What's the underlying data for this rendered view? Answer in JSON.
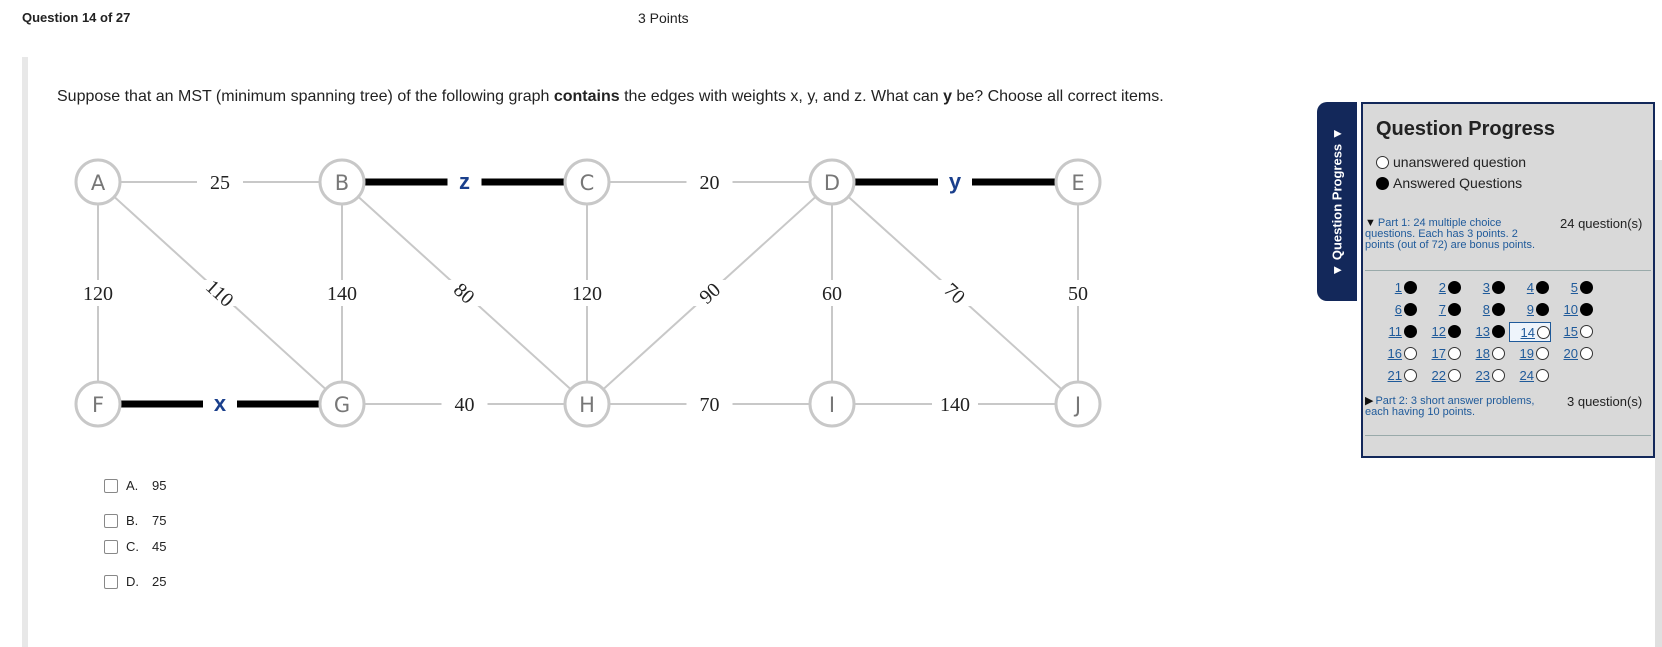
{
  "header": {
    "question_number": "Question 14 of 27",
    "points": "3 Points"
  },
  "question": {
    "text_part1": "Suppose that an MST (minimum spanning tree) of the following graph ",
    "text_bold1": "contains",
    "text_part2": " the edges with weights x, y, and z. What can ",
    "text_bold2": "y",
    "text_part3": " be? Choose all correct items."
  },
  "graph": {
    "nodes": [
      "A",
      "B",
      "C",
      "D",
      "E",
      "F",
      "G",
      "H",
      "I",
      "J"
    ],
    "edges": [
      {
        "from": "A",
        "to": "B",
        "weight": "25"
      },
      {
        "from": "B",
        "to": "C",
        "weight": "z",
        "highlight": true
      },
      {
        "from": "C",
        "to": "D",
        "weight": "20"
      },
      {
        "from": "D",
        "to": "E",
        "weight": "y",
        "highlight": true
      },
      {
        "from": "A",
        "to": "F",
        "weight": "120"
      },
      {
        "from": "A",
        "to": "G",
        "weight": "110"
      },
      {
        "from": "B",
        "to": "G",
        "weight": "140"
      },
      {
        "from": "B",
        "to": "H",
        "weight": "80"
      },
      {
        "from": "C",
        "to": "H",
        "weight": "120"
      },
      {
        "from": "D",
        "to": "H",
        "weight": "90"
      },
      {
        "from": "D",
        "to": "I",
        "weight": "60"
      },
      {
        "from": "D",
        "to": "J",
        "weight": "70"
      },
      {
        "from": "E",
        "to": "J",
        "weight": "50"
      },
      {
        "from": "F",
        "to": "G",
        "weight": "x",
        "highlight": true
      },
      {
        "from": "G",
        "to": "H",
        "weight": "40"
      },
      {
        "from": "H",
        "to": "I",
        "weight": "70"
      },
      {
        "from": "I",
        "to": "J",
        "weight": "140"
      }
    ]
  },
  "choices": [
    {
      "letter": "A.",
      "value": "95",
      "checked": false
    },
    {
      "letter": "B.",
      "value": "75",
      "checked": false
    },
    {
      "letter": "C.",
      "value": "45",
      "checked": false
    },
    {
      "letter": "D.",
      "value": "25",
      "checked": false
    }
  ],
  "progress": {
    "tab_label": "▼ Question Progress ▼",
    "title": "Question Progress",
    "legend_unanswered": "unanswered question",
    "legend_answered": "Answered Questions",
    "part1": {
      "label": "Part 1: 24 multiple choice questions. Each has 3 points. 2 points (out of 72) are bonus points.",
      "count": "24 question(s)"
    },
    "part2": {
      "label": "Part 2: 3 short answer problems, each having 10 points.",
      "count": "3 question(s)"
    },
    "questions": [
      {
        "n": "1",
        "answered": true
      },
      {
        "n": "2",
        "answered": true
      },
      {
        "n": "3",
        "answered": true
      },
      {
        "n": "4",
        "answered": true
      },
      {
        "n": "5",
        "answered": true
      },
      {
        "n": "6",
        "answered": true
      },
      {
        "n": "7",
        "answered": true
      },
      {
        "n": "8",
        "answered": true
      },
      {
        "n": "9",
        "answered": true
      },
      {
        "n": "10",
        "answered": true
      },
      {
        "n": "11",
        "answered": true
      },
      {
        "n": "12",
        "answered": true
      },
      {
        "n": "13",
        "answered": true
      },
      {
        "n": "14",
        "answered": false,
        "current": true
      },
      {
        "n": "15",
        "answered": false
      },
      {
        "n": "16",
        "answered": false
      },
      {
        "n": "17",
        "answered": false
      },
      {
        "n": "18",
        "answered": false
      },
      {
        "n": "19",
        "answered": false
      },
      {
        "n": "20",
        "answered": false
      },
      {
        "n": "21",
        "answered": false
      },
      {
        "n": "22",
        "answered": false
      },
      {
        "n": "23",
        "answered": false
      },
      {
        "n": "24",
        "answered": false
      }
    ]
  },
  "colors": {
    "accent": "#13285a",
    "link": "#1f5a9a",
    "highlight_label": "#1a3f8c"
  }
}
